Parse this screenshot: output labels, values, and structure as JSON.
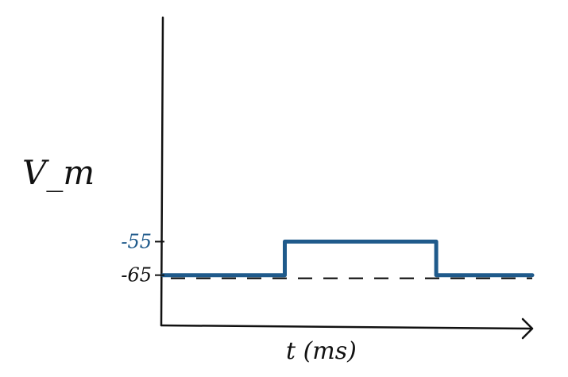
{
  "chart_data": {
    "type": "line",
    "title": "",
    "xlabel": "t (ms)",
    "ylabel": "V_m",
    "x_ticks": [],
    "y_ticks": [
      {
        "label": "-55",
        "value": -55
      },
      {
        "label": "-65",
        "value": -65
      }
    ],
    "ylim": [
      -80,
      10
    ],
    "xlim": [
      0,
      100
    ],
    "grid": false,
    "legend": "none",
    "series": [
      {
        "x": [
          0,
          33,
          33,
          74,
          74,
          100
        ],
        "y": [
          -65,
          -65,
          -55,
          -55,
          -65,
          -65
        ],
        "color": "#1f5a8b"
      }
    ],
    "baseline_dashed": {
      "value": -65,
      "color": "#000000"
    }
  }
}
